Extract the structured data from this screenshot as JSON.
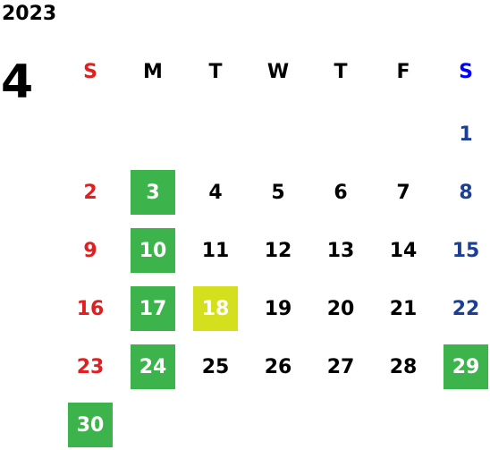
{
  "year": "2023",
  "month": "4",
  "colors": {
    "sunday": "#e02020",
    "saturday_header": "#0000ff",
    "saturday": "#1c3f94",
    "weekday": "#000000",
    "holiday_bg": "#3cb44b",
    "today_bg": "#d4df1e",
    "highlight_text": "#ffffff"
  },
  "weekdays": [
    "S",
    "M",
    "T",
    "W",
    "T",
    "F",
    "S"
  ],
  "weeks": [
    [
      {
        "day": ""
      },
      {
        "day": ""
      },
      {
        "day": ""
      },
      {
        "day": ""
      },
      {
        "day": ""
      },
      {
        "day": ""
      },
      {
        "day": "1"
      }
    ],
    [
      {
        "day": "2"
      },
      {
        "day": "3",
        "mark": "holiday"
      },
      {
        "day": "4"
      },
      {
        "day": "5"
      },
      {
        "day": "6"
      },
      {
        "day": "7"
      },
      {
        "day": "8"
      }
    ],
    [
      {
        "day": "9"
      },
      {
        "day": "10",
        "mark": "holiday"
      },
      {
        "day": "11"
      },
      {
        "day": "12"
      },
      {
        "day": "13"
      },
      {
        "day": "14"
      },
      {
        "day": "15"
      }
    ],
    [
      {
        "day": "16"
      },
      {
        "day": "17",
        "mark": "holiday"
      },
      {
        "day": "18",
        "mark": "today"
      },
      {
        "day": "19"
      },
      {
        "day": "20"
      },
      {
        "day": "21"
      },
      {
        "day": "22"
      }
    ],
    [
      {
        "day": "23"
      },
      {
        "day": "24",
        "mark": "holiday"
      },
      {
        "day": "25"
      },
      {
        "day": "26"
      },
      {
        "day": "27"
      },
      {
        "day": "28"
      },
      {
        "day": "29",
        "mark": "holiday"
      }
    ],
    [
      {
        "day": "30",
        "mark": "holiday"
      },
      {
        "day": ""
      },
      {
        "day": ""
      },
      {
        "day": ""
      },
      {
        "day": ""
      },
      {
        "day": ""
      },
      {
        "day": ""
      }
    ]
  ]
}
